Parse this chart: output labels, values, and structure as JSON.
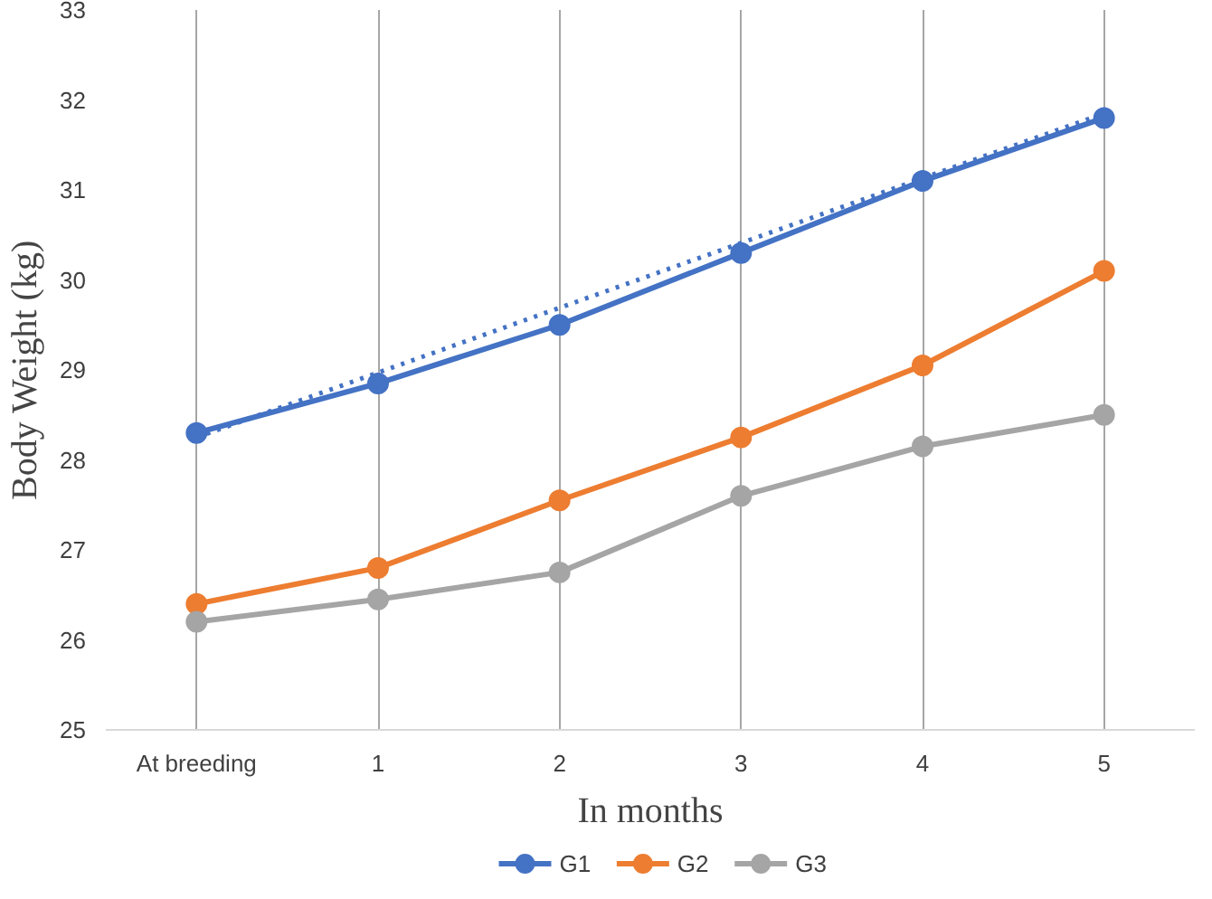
{
  "chart_data": {
    "type": "line",
    "xlabel": "In months",
    "ylabel": "Body Weight (kg)",
    "categories": [
      "At breeding",
      "1",
      "2",
      "3",
      "4",
      "5"
    ],
    "ylim": [
      25,
      33
    ],
    "yticks": [
      25,
      26,
      27,
      28,
      29,
      30,
      31,
      32,
      33
    ],
    "grid": "x",
    "legend": "bottom",
    "marker": "circle",
    "line_style": "solid",
    "series": [
      {
        "name": "G1",
        "color": "#4472c4",
        "values": [
          28.3,
          28.85,
          29.5,
          30.3,
          31.1,
          31.8
        ]
      },
      {
        "name": "G2",
        "color": "#ed7d31",
        "values": [
          26.4,
          26.8,
          27.55,
          28.25,
          29.05,
          30.1
        ]
      },
      {
        "name": "G3",
        "color": "#a5a5a5",
        "values": [
          26.2,
          26.45,
          26.75,
          27.6,
          28.15,
          28.5
        ]
      },
      {
        "type": "line",
        "color": "#4472c4",
        "x": [
          "At breeding",
          "5"
        ],
        "values": [
          28.25,
          31.85
        ],
        "line_style": "dotted",
        "marker": "none"
      }
    ]
  }
}
